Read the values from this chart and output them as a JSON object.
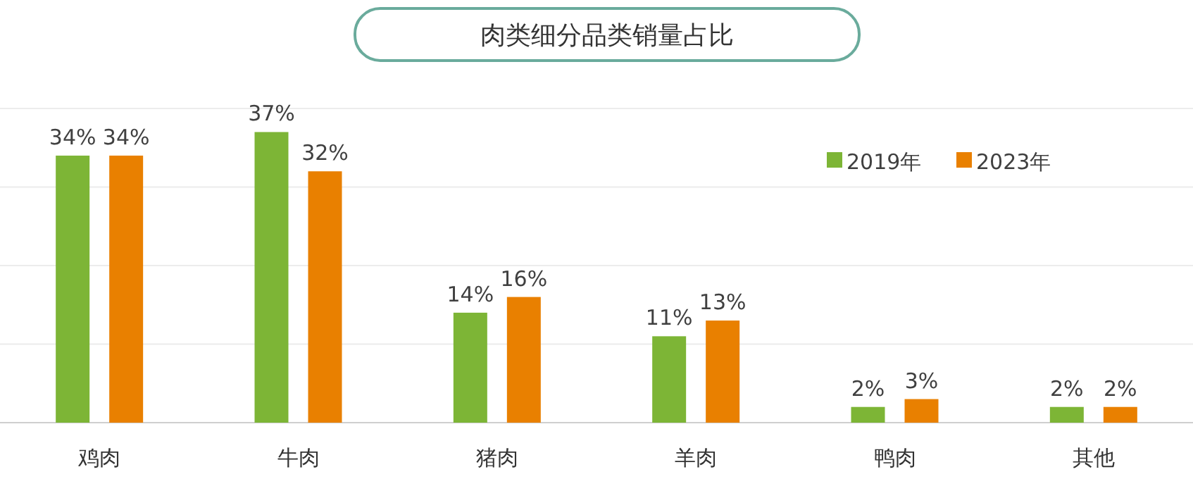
{
  "chart_data": {
    "type": "bar",
    "title": "肉类细分品类销量占比",
    "categories": [
      "鸡肉",
      "牛肉",
      "猪肉",
      "羊肉",
      "鸭肉",
      "其他"
    ],
    "series": [
      {
        "name": "2019年",
        "color": "#7db536",
        "values": [
          34,
          37,
          14,
          11,
          2,
          2
        ],
        "value_labels": [
          "34%",
          "37%",
          "14%",
          "11%",
          "2%",
          "2%"
        ]
      },
      {
        "name": "2023年",
        "color": "#e98000",
        "values": [
          34,
          32,
          16,
          13,
          3,
          2
        ],
        "value_labels": [
          "34%",
          "32%",
          "16%",
          "13%",
          "3%",
          "2%"
        ]
      }
    ],
    "ylim": [
      0,
      40
    ],
    "yticks": [
      {
        "value": 0,
        "label": null
      },
      {
        "value": 10,
        "label": null
      },
      {
        "value": 20,
        "label": null
      },
      {
        "value": 30,
        "label": null
      },
      {
        "value": 40,
        "label": null
      }
    ],
    "grid": "y",
    "legend": "top right"
  }
}
